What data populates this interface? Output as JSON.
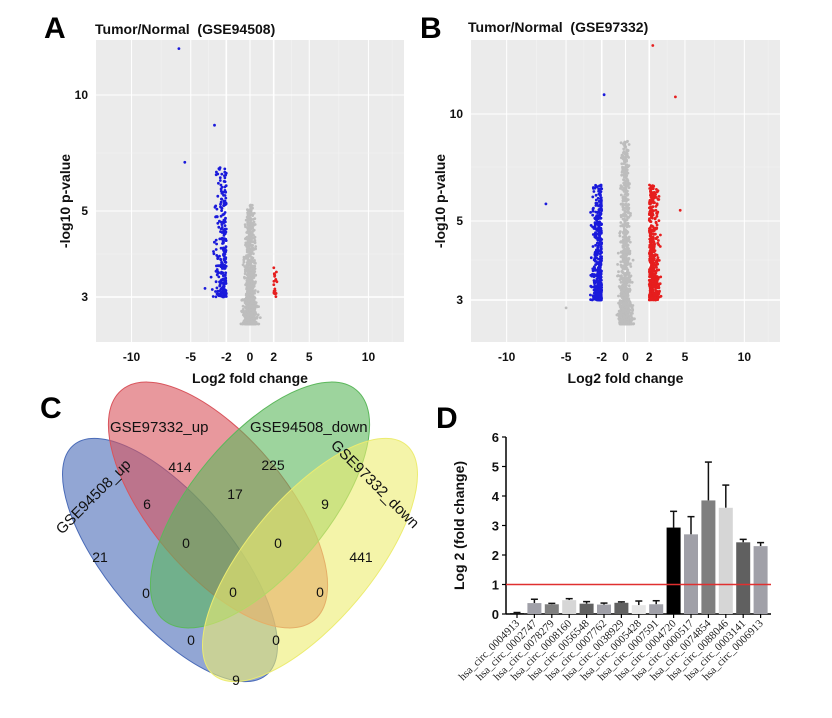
{
  "panels": {
    "A": "A",
    "B": "B",
    "C": "C",
    "D": "D"
  },
  "chart_data": [
    {
      "id": "A",
      "type": "scatter",
      "title": "Tumor/Normal  (GSE94508)",
      "xlabel": "Log2 fold change",
      "ylabel": "-log10 p-value",
      "xticks": [
        -10,
        -5,
        -2,
        0,
        2,
        5,
        10
      ],
      "yticks": [
        "10",
        "5",
        "3"
      ],
      "xlim": [
        -13,
        13
      ],
      "grid": true,
      "thresholds": {
        "fold_change": [
          -2,
          2
        ],
        "p_line": "3"
      },
      "colors": {
        "down": "#1a1adb",
        "up": "#e61e1e",
        "ns": "#bdbdbd",
        "panel": "#ebebeb"
      },
      "counts_visible": {
        "down": "many",
        "up": "few"
      },
      "notable_points": [
        {
          "x": -6.0,
          "y": 12.0,
          "group": "down"
        },
        {
          "x": -3.0,
          "y": 8.7,
          "group": "down"
        },
        {
          "x": -5.5,
          "y": 7.1,
          "group": "down"
        },
        {
          "x": -3.8,
          "y": 3.2,
          "group": "down"
        }
      ]
    },
    {
      "id": "B",
      "type": "scatter",
      "title": "Tumor/Normal  (GSE97332)",
      "xlabel": "Log2 fold change",
      "ylabel": "-log10 p-value",
      "xticks": [
        -10,
        -5,
        -2,
        0,
        2,
        5,
        10
      ],
      "yticks": [
        "10",
        "5",
        "3"
      ],
      "xlim": [
        -13,
        13
      ],
      "grid": true,
      "thresholds": {
        "fold_change": [
          -2,
          2
        ],
        "p_line": "3"
      },
      "colors": {
        "down": "#1a1adb",
        "up": "#e61e1e",
        "ns": "#bdbdbd",
        "panel": "#ebebeb"
      },
      "counts_visible": {
        "down": "many",
        "up": "many"
      },
      "notable_points": [
        {
          "x": 2.3,
          "y": 13.2,
          "group": "up"
        },
        {
          "x": -1.8,
          "y": 10.9,
          "group": "down"
        },
        {
          "x": 4.2,
          "y": 10.8,
          "group": "up"
        },
        {
          "x": -6.7,
          "y": 5.8,
          "group": "down"
        },
        {
          "x": 4.6,
          "y": 5.5,
          "group": "up"
        },
        {
          "x": -5.0,
          "y": 2.8,
          "group": "ns"
        }
      ]
    },
    {
      "id": "C",
      "type": "venn",
      "sets": [
        {
          "name": "GSE94508_up",
          "color": "#4a6bb8"
        },
        {
          "name": "GSE97332_up",
          "color": "#d9545c"
        },
        {
          "name": "GSE94508_down",
          "color": "#5cb85c"
        },
        {
          "name": "GSE97332_down",
          "color": "#ecec70"
        }
      ],
      "regions": [
        {
          "sets": [
            "GSE97332_up"
          ],
          "count": "414"
        },
        {
          "sets": [
            "GSE94508_down"
          ],
          "count": "225"
        },
        {
          "sets": [
            "GSE94508_up"
          ],
          "count": "21"
        },
        {
          "sets": [
            "GSE97332_down"
          ],
          "count": "441"
        },
        {
          "sets": [
            "GSE94508_up",
            "GSE97332_up"
          ],
          "count": "6"
        },
        {
          "sets": [
            "GSE97332_up",
            "GSE94508_down"
          ],
          "count": "17"
        },
        {
          "sets": [
            "GSE94508_down",
            "GSE97332_down"
          ],
          "count": "9"
        },
        {
          "sets": [
            "GSE94508_up",
            "GSE97332_up",
            "GSE94508_down"
          ],
          "count": "0"
        },
        {
          "sets": [
            "GSE97332_up",
            "GSE94508_down",
            "GSE97332_down"
          ],
          "count": "0"
        },
        {
          "sets": [
            "GSE94508_up",
            "GSE94508_down"
          ],
          "count": "0"
        },
        {
          "sets": [
            "all"
          ],
          "count": "0"
        },
        {
          "sets": [
            "GSE97332_up",
            "GSE97332_down"
          ],
          "count": "0"
        },
        {
          "sets": [
            "GSE94508_up",
            "GSE94508_down",
            "GSE97332_down"
          ],
          "count": "0"
        },
        {
          "sets": [
            "GSE94508_up",
            "GSE97332_up",
            "GSE97332_down"
          ],
          "count": "0"
        },
        {
          "sets": [
            "GSE94508_up",
            "GSE97332_down"
          ],
          "count": "9"
        }
      ]
    },
    {
      "id": "D",
      "type": "bar",
      "ylabel": "Log 2 (fold change)",
      "ylim": [
        0,
        6
      ],
      "yticks": [
        0,
        1,
        2,
        3,
        4,
        5,
        6
      ],
      "reference_line": {
        "y": 1,
        "color": "#e03030"
      },
      "categories": [
        "hsa_circ_0004913",
        "hsa_circ_0002747",
        "hsa_circ_0078279",
        "hsa_circ_0008160",
        "hsa_circ_0056548",
        "hsa_circ_0007762",
        "hsa_circ_0038929",
        "hsa_circ_0005428",
        "hsa_circ_0007591",
        "hsa_circ_0004720",
        "hsa_circ_0000517",
        "hsa_circ_0074854",
        "hsa_circ_0088046",
        "hsa_circ_0003141",
        "hsa_circ_0006913"
      ],
      "values": [
        0.03,
        0.37,
        0.33,
        0.47,
        0.35,
        0.32,
        0.38,
        0.3,
        0.33,
        2.93,
        2.7,
        3.85,
        3.6,
        2.43,
        2.3
      ],
      "errors": [
        0.02,
        0.13,
        0.03,
        0.05,
        0.07,
        0.05,
        0.03,
        0.14,
        0.12,
        0.55,
        0.6,
        1.3,
        0.77,
        0.1,
        0.12
      ],
      "bar_colors": [
        "#111111",
        "#a0a0a8",
        "#7f7f7f",
        "#d6d6d6",
        "#606060",
        "#a0a0a8",
        "#606060",
        "#e6e6e6",
        "#a0a0a8",
        "#000000",
        "#a0a0a8",
        "#7f7f7f",
        "#d6d6d6",
        "#606060",
        "#a0a0a8"
      ]
    }
  ]
}
